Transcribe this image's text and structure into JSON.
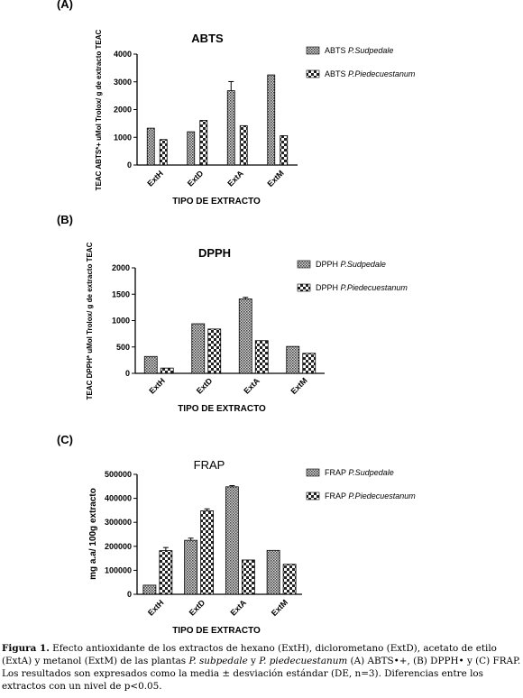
{
  "panels": [
    {
      "label": "(A)",
      "title": "ABTS",
      "ylabel": "TEAC ABTS*+ uMol Trolox/ g de extracto TEAC",
      "xlabel": "TIPO DE EXTRACTO",
      "legend": [
        {
          "name": "ABTS",
          "species": "P.Sudpedale"
        },
        {
          "name": "ABTS",
          "species": "P.Piedecuestanum"
        }
      ],
      "yticks": [
        "0",
        "1000",
        "2000",
        "3000",
        "4000"
      ]
    },
    {
      "label": "(B)",
      "title": "DPPH",
      "ylabel": "TEAC DPPH* uMol Trolox/ g de extracto TEAC",
      "xlabel": "TIPO DE EXTRACTO",
      "legend": [
        {
          "name": "DPPH",
          "species": "P.Sudpedale"
        },
        {
          "name": "DPPH",
          "species": "P.Piedecuestanum"
        }
      ],
      "yticks": [
        "0",
        "500",
        "1000",
        "1500",
        "2000"
      ]
    },
    {
      "label": "(C)",
      "title": "FRAP",
      "ylabel": "mg a.a/ 100g extracto",
      "xlabel": "TIPO DE EXTRACTO",
      "legend": [
        {
          "name": "FRAP",
          "species": "P.Sudpedale"
        },
        {
          "name": "FRAP",
          "species": "P.Piedecuestanum"
        }
      ],
      "yticks": [
        "0",
        "100000",
        "200000",
        "300000",
        "400000",
        "500000"
      ]
    }
  ],
  "chart_data": [
    {
      "type": "bar",
      "title": "ABTS",
      "xlabel": "TIPO DE EXTRACTO",
      "ylabel": "TEAC ABTS*+ uMol Trolox/ g de extracto TEAC",
      "categories": [
        "ExtH",
        "ExtD",
        "ExtA",
        "ExtM"
      ],
      "ylim": [
        0,
        4000
      ],
      "series": [
        {
          "name": "ABTS P.Sudpedale",
          "values": [
            1330,
            1200,
            2680,
            3250
          ],
          "errors": [
            0,
            0,
            330,
            0
          ],
          "pattern": "dots"
        },
        {
          "name": "ABTS P.Piedecuestanum",
          "values": [
            920,
            1610,
            1420,
            1060
          ],
          "errors": [
            0,
            0,
            0,
            0
          ],
          "pattern": "check"
        }
      ],
      "legend_position": "right"
    },
    {
      "type": "bar",
      "title": "DPPH",
      "xlabel": "TIPO DE EXTRACTO",
      "ylabel": "TEAC DPPH* uMol Trolox/ g de extracto TEAC",
      "categories": [
        "ExtH",
        "ExtD",
        "ExtA",
        "ExtM"
      ],
      "ylim": [
        0,
        2000
      ],
      "series": [
        {
          "name": "DPPH P.Sudpedale",
          "values": [
            320,
            940,
            1410,
            510
          ],
          "errors": [
            0,
            0,
            30,
            0
          ],
          "pattern": "dots"
        },
        {
          "name": "DPPH P.Piedecuestanum",
          "values": [
            100,
            840,
            620,
            380
          ],
          "errors": [
            0,
            0,
            0,
            0
          ],
          "pattern": "check"
        }
      ],
      "legend_position": "right"
    },
    {
      "type": "bar",
      "title": "FRAP",
      "xlabel": "TIPO DE EXTRACTO",
      "ylabel": "mg a.a/ 100g extracto",
      "categories": [
        "ExtH",
        "ExtD",
        "ExtA",
        "ExtM"
      ],
      "ylim": [
        0,
        500000
      ],
      "series": [
        {
          "name": "FRAP P.Sudpedale",
          "values": [
            38000,
            225000,
            448000,
            183000
          ],
          "errors": [
            0,
            9000,
            5000,
            0
          ],
          "pattern": "dots"
        },
        {
          "name": "FRAP P.Piedecuestanum",
          "values": [
            182000,
            348000,
            143000,
            125000
          ],
          "errors": [
            13000,
            8000,
            0,
            0
          ],
          "pattern": "check"
        }
      ],
      "legend_position": "right"
    }
  ],
  "caption": {
    "label": "Figura 1.",
    "seg1": " Efecto antioxidante de los extractos de hexano (ExtH), diclorometano (ExtD), acetato de etilo (ExtA) y metanol (ExtM) de las plantas ",
    "species1": "P. subpedale",
    "seg2": " y ",
    "species2": "P. piedecuestanum",
    "seg3": " (A) ABTS•+, (B) DPPH• y (C) FRAP. Los resultados son expresados como la media ± desviación estándar (DE, n=3). Diferencias entre los extractos con un nivel de p<0.05."
  }
}
